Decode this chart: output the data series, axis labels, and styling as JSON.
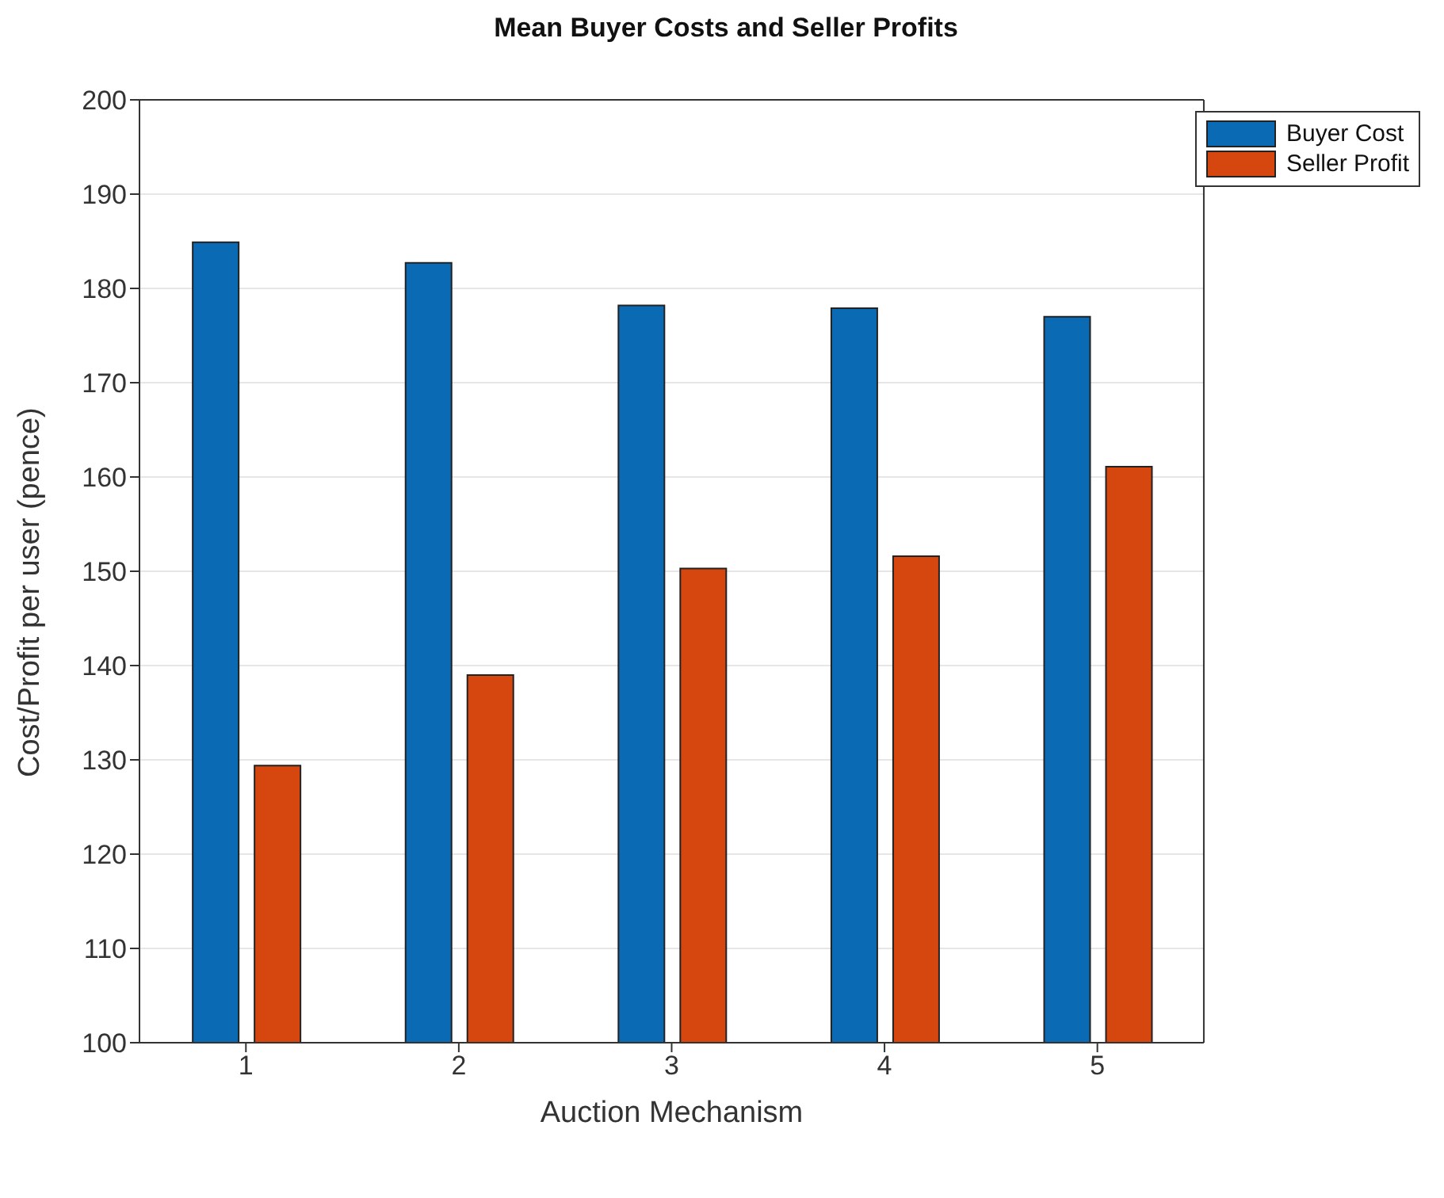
{
  "chart_data": {
    "type": "bar",
    "title": "Mean Buyer Costs and Seller Profits",
    "xlabel": "Auction Mechanism",
    "ylabel": "Cost/Profit per user (pence)",
    "categories": [
      "1",
      "2",
      "3",
      "4",
      "5"
    ],
    "series": [
      {
        "name": "Buyer Cost",
        "color": "#0a6ab3",
        "values": [
          184.9,
          182.7,
          178.2,
          177.9,
          177.0
        ]
      },
      {
        "name": "Seller Profit",
        "color": "#d5470f",
        "values": [
          129.4,
          139.0,
          150.3,
          151.6,
          161.1
        ]
      }
    ],
    "ylim": [
      100,
      200
    ],
    "yticks": [
      100,
      110,
      120,
      130,
      140,
      150,
      160,
      170,
      180,
      190,
      200
    ],
    "grid": "y",
    "legend": "top right"
  }
}
